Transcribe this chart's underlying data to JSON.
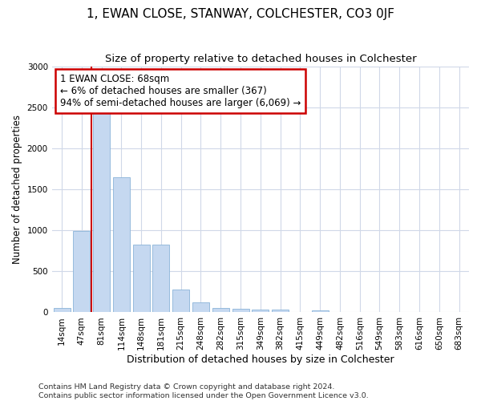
{
  "title": "1, EWAN CLOSE, STANWAY, COLCHESTER, CO3 0JF",
  "subtitle": "Size of property relative to detached houses in Colchester",
  "xlabel": "Distribution of detached houses by size in Colchester",
  "ylabel": "Number of detached properties",
  "categories": [
    "14sqm",
    "47sqm",
    "81sqm",
    "114sqm",
    "148sqm",
    "181sqm",
    "215sqm",
    "248sqm",
    "282sqm",
    "315sqm",
    "349sqm",
    "382sqm",
    "415sqm",
    "449sqm",
    "482sqm",
    "516sqm",
    "549sqm",
    "583sqm",
    "616sqm",
    "650sqm",
    "683sqm"
  ],
  "values": [
    50,
    990,
    2450,
    1650,
    830,
    830,
    275,
    120,
    55,
    45,
    30,
    30,
    0,
    25,
    0,
    0,
    0,
    0,
    0,
    0,
    0
  ],
  "bar_color": "#c5d8f0",
  "bar_edge_color": "#8ab4d8",
  "property_line_x": 1.5,
  "annotation_line1": "1 EWAN CLOSE: 68sqm",
  "annotation_line2": "← 6% of detached houses are smaller (367)",
  "annotation_line3": "94% of semi-detached houses are larger (6,069) →",
  "annotation_box_facecolor": "#ffffff",
  "annotation_box_edgecolor": "#cc0000",
  "line_color": "#cc0000",
  "ylim_max": 3000,
  "yticks": [
    0,
    500,
    1000,
    1500,
    2000,
    2500,
    3000
  ],
  "footer_line1": "Contains HM Land Registry data © Crown copyright and database right 2024.",
  "footer_line2": "Contains public sector information licensed under the Open Government Licence v3.0.",
  "bg_color": "#ffffff",
  "plot_bg_color": "#ffffff",
  "grid_color": "#d0d8e8",
  "title_fontsize": 11,
  "subtitle_fontsize": 9.5,
  "ylabel_fontsize": 8.5,
  "xlabel_fontsize": 9,
  "tick_fontsize": 7.5,
  "annotation_fontsize": 8.5,
  "footer_fontsize": 6.8
}
